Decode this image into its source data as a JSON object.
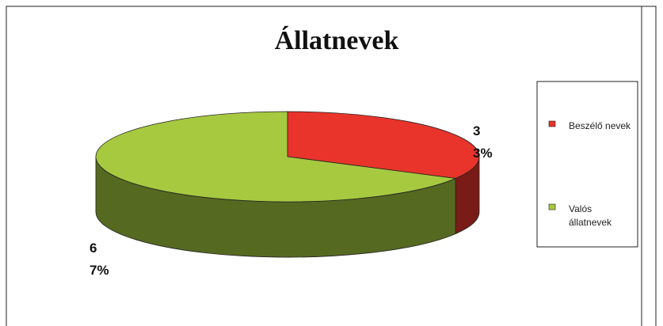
{
  "chart_data": {
    "type": "pie",
    "title": "Állatnevek",
    "categories": [
      "Beszélő nevek",
      "Valós állatnevek"
    ],
    "values": [
      33,
      67
    ],
    "value_labels": [
      "33%",
      "67%"
    ],
    "colors": [
      "#e8342a",
      "#a6c940"
    ]
  }
}
